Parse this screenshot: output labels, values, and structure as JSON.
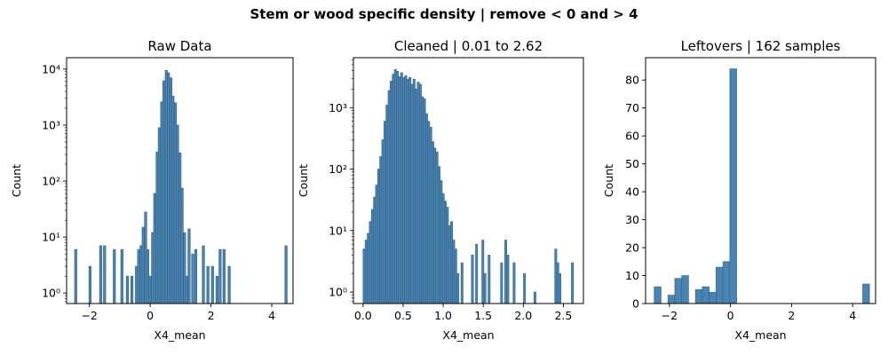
{
  "suptitle": "Stem or wood specific density | remove < 0 and > 4",
  "style": {
    "bar_color": "#4b84b1",
    "bar_edge": "#2e5f86"
  },
  "chart_data": [
    {
      "type": "bar",
      "title": "Raw Data",
      "xlabel": "X4_mean",
      "ylabel": "Count",
      "yscale": "log",
      "xlim": [
        -2.75,
        4.7
      ],
      "ylim": [
        0.65,
        16000
      ],
      "xticks": [
        -2,
        0,
        2,
        4
      ],
      "xtick_labels": [
        "−2",
        "0",
        "2",
        "4"
      ],
      "yticks": [
        1,
        10,
        100,
        1000,
        10000
      ],
      "ytick_labels": [
        "10⁰",
        "10¹",
        "10²",
        "10³",
        "10⁴"
      ],
      "bin_width": 0.075,
      "bins": [
        [
          -2.45,
          6
        ],
        [
          -1.98,
          3
        ],
        [
          -1.63,
          7
        ],
        [
          -1.5,
          7
        ],
        [
          -1.18,
          6
        ],
        [
          -0.93,
          6
        ],
        [
          -0.75,
          2
        ],
        [
          -0.6,
          2
        ],
        [
          -0.45,
          3
        ],
        [
          -0.38,
          6
        ],
        [
          -0.3,
          7
        ],
        [
          -0.23,
          15
        ],
        [
          -0.15,
          28
        ],
        [
          -0.08,
          6
        ],
        [
          0.0,
          2
        ],
        [
          0.08,
          12
        ],
        [
          0.15,
          60
        ],
        [
          0.23,
          330
        ],
        [
          0.3,
          900
        ],
        [
          0.38,
          2600
        ],
        [
          0.45,
          6200
        ],
        [
          0.53,
          9500
        ],
        [
          0.6,
          8600
        ],
        [
          0.68,
          7000
        ],
        [
          0.75,
          3300
        ],
        [
          0.83,
          2500
        ],
        [
          0.9,
          1000
        ],
        [
          0.98,
          320
        ],
        [
          1.05,
          75
        ],
        [
          1.13,
          12
        ],
        [
          1.2,
          2
        ],
        [
          1.28,
          14
        ],
        [
          1.4,
          5
        ],
        [
          1.5,
          6
        ],
        [
          1.75,
          7
        ],
        [
          1.9,
          3
        ],
        [
          2.05,
          3
        ],
        [
          2.2,
          2
        ],
        [
          2.3,
          6
        ],
        [
          2.43,
          6
        ],
        [
          2.6,
          3
        ],
        [
          4.47,
          7
        ]
      ]
    },
    {
      "type": "bar",
      "title": "Cleaned | 0.01 to 2.62",
      "xlabel": "X4_mean",
      "ylabel": "Count",
      "yscale": "log",
      "xlim": [
        -0.12,
        2.75
      ],
      "ylim": [
        0.65,
        6500
      ],
      "xticks": [
        0,
        0.5,
        1,
        1.5,
        2,
        2.5
      ],
      "xtick_labels": [
        "0.0",
        "0.5",
        "1.0",
        "1.5",
        "2.0",
        "2.5"
      ],
      "yticks": [
        1,
        10,
        100,
        1000
      ],
      "ytick_labels": [
        "10⁰",
        "10¹",
        "10²",
        "10³"
      ],
      "bin_width": 0.026,
      "bins": [
        [
          0.013,
          5
        ],
        [
          0.039,
          7
        ],
        [
          0.065,
          9
        ],
        [
          0.091,
          14
        ],
        [
          0.117,
          22
        ],
        [
          0.143,
          35
        ],
        [
          0.169,
          55
        ],
        [
          0.195,
          100
        ],
        [
          0.221,
          160
        ],
        [
          0.247,
          300
        ],
        [
          0.273,
          600
        ],
        [
          0.299,
          1100
        ],
        [
          0.325,
          1900
        ],
        [
          0.351,
          2700
        ],
        [
          0.377,
          3500
        ],
        [
          0.403,
          4200
        ],
        [
          0.429,
          3900
        ],
        [
          0.455,
          3200
        ],
        [
          0.481,
          3700
        ],
        [
          0.507,
          3100
        ],
        [
          0.533,
          3300
        ],
        [
          0.559,
          2900
        ],
        [
          0.585,
          3100
        ],
        [
          0.611,
          2400
        ],
        [
          0.637,
          2900
        ],
        [
          0.663,
          2000
        ],
        [
          0.689,
          2600
        ],
        [
          0.715,
          2400
        ],
        [
          0.741,
          1500
        ],
        [
          0.767,
          1400
        ],
        [
          0.793,
          800
        ],
        [
          0.819,
          600
        ],
        [
          0.845,
          480
        ],
        [
          0.871,
          280
        ],
        [
          0.897,
          220
        ],
        [
          0.923,
          190
        ],
        [
          0.949,
          110
        ],
        [
          0.975,
          65
        ],
        [
          1.001,
          40
        ],
        [
          1.027,
          30
        ],
        [
          1.053,
          24
        ],
        [
          1.079,
          12
        ],
        [
          1.105,
          14
        ],
        [
          1.131,
          7
        ],
        [
          1.157,
          5
        ],
        [
          1.183,
          2
        ],
        [
          1.235,
          3
        ],
        [
          1.365,
          4
        ],
        [
          1.417,
          6
        ],
        [
          1.495,
          7
        ],
        [
          1.521,
          2
        ],
        [
          1.573,
          4
        ],
        [
          1.729,
          3
        ],
        [
          1.781,
          7
        ],
        [
          1.807,
          4
        ],
        [
          1.885,
          3
        ],
        [
          2.015,
          2
        ],
        [
          2.145,
          1
        ],
        [
          2.405,
          5
        ],
        [
          2.431,
          3
        ],
        [
          2.457,
          2
        ],
        [
          2.613,
          3
        ]
      ]
    },
    {
      "type": "bar",
      "title": "Leftovers | 162 samples",
      "xlabel": "X4_mean",
      "ylabel": "Count",
      "yscale": "linear",
      "xlim": [
        -2.78,
        4.75
      ],
      "ylim": [
        0,
        88
      ],
      "xticks": [
        -2,
        0,
        2,
        4
      ],
      "xtick_labels": [
        "−2",
        "0",
        "2",
        "4"
      ],
      "yticks": [
        0,
        10,
        20,
        30,
        40,
        50,
        60,
        70,
        80
      ],
      "ytick_labels": [
        "0",
        "10",
        "20",
        "30",
        "40",
        "50",
        "60",
        "70",
        "80"
      ],
      "bin_width": 0.225,
      "bins": [
        [
          -2.385,
          6
        ],
        [
          -1.935,
          3
        ],
        [
          -1.71,
          9
        ],
        [
          -1.485,
          10
        ],
        [
          -1.035,
          5
        ],
        [
          -0.81,
          6
        ],
        [
          -0.585,
          4
        ],
        [
          -0.36,
          13
        ],
        [
          -0.135,
          15
        ],
        [
          0.09,
          84
        ],
        [
          4.44,
          7
        ]
      ]
    }
  ]
}
